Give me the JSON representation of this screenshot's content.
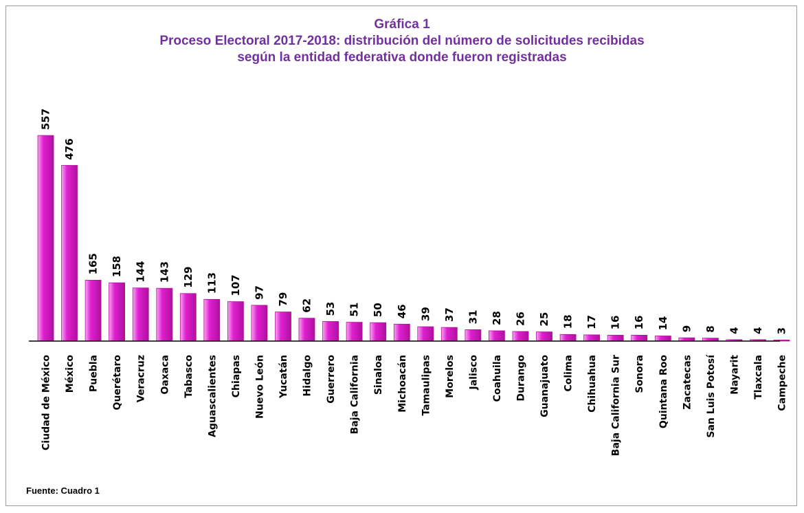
{
  "header": {
    "line1": "Gráfica 1",
    "line2": "Proceso Electoral 2017-2018: distribución del número de solicitudes recibidas",
    "line3": "según la entidad federativa donde fueron registradas"
  },
  "footer": {
    "source": "Fuente: Cuadro 1"
  },
  "colors": {
    "bar": "#e020d0",
    "bar_light": "#f6a8ef",
    "bar_dark": "#b0109e",
    "title": "#7030a0",
    "axis": "#000000"
  },
  "chart_data": {
    "type": "bar",
    "title": "Gráfica 1 — Proceso Electoral 2017-2018: distribución del número de solicitudes recibidas según la entidad federativa donde fueron registradas",
    "xlabel": "",
    "ylabel": "",
    "ylim": [
      0,
      557
    ],
    "grid": false,
    "legend": "none",
    "categories": [
      "Ciudad de México",
      "México",
      "Puebla",
      "Querétaro",
      "Veracruz",
      "Oaxaca",
      "Tabasco",
      "Aguascalientes",
      "Chiapas",
      "Nuevo León",
      "Yucatán",
      "Hidalgo",
      "Guerrero",
      "Baja California",
      "Sinaloa",
      "Michoacán",
      "Tamaulipas",
      "Morelos",
      "Jalisco",
      "Coahuila",
      "Durango",
      "Guanajuato",
      "Colima",
      "Chihuahua",
      "Baja California Sur",
      "Sonora",
      "Quintana Roo",
      "Zacatecas",
      "San Luis Potosí",
      "Nayarit",
      "Tlaxcala",
      "Campeche"
    ],
    "values": [
      557,
      476,
      165,
      158,
      144,
      143,
      129,
      113,
      107,
      97,
      79,
      62,
      53,
      51,
      50,
      46,
      39,
      37,
      31,
      28,
      26,
      25,
      18,
      17,
      16,
      16,
      14,
      9,
      8,
      4,
      4,
      3
    ]
  }
}
